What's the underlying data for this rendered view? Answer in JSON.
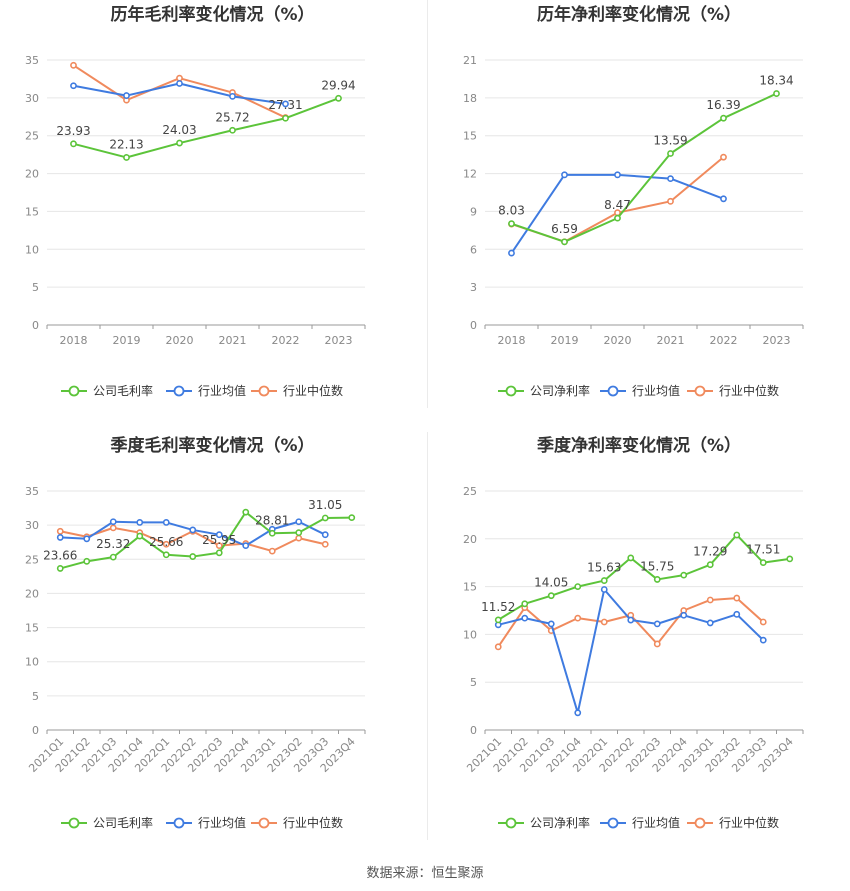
{
  "colors": {
    "company": "#5cc43a",
    "industry_avg": "#3f7be0",
    "industry_median": "#f08a5d"
  },
  "source": "数据来源：恒生聚源",
  "chart_data": [
    {
      "type": "line",
      "title": "历年毛利率变化情况（%）",
      "categories": [
        "2018",
        "2019",
        "2020",
        "2021",
        "2022",
        "2023"
      ],
      "ylim": [
        0,
        35
      ],
      "yticks": [
        0,
        5,
        10,
        15,
        20,
        25,
        30,
        35
      ],
      "legend": [
        "公司毛利率",
        "行业均值",
        "行业中位数"
      ],
      "series": [
        {
          "name": "公司毛利率",
          "values": [
            23.93,
            22.13,
            24.03,
            25.72,
            27.31,
            29.94
          ],
          "labels": [
            "23.93",
            "22.13",
            "24.03",
            "25.72",
            "27.31",
            "29.94"
          ]
        },
        {
          "name": "行业均值",
          "values": [
            31.6,
            30.3,
            31.9,
            30.2,
            29.2,
            null
          ]
        },
        {
          "name": "行业中位数",
          "values": [
            34.3,
            29.7,
            32.6,
            30.7,
            27.4,
            null
          ]
        }
      ]
    },
    {
      "type": "line",
      "title": "历年净利率变化情况（%）",
      "categories": [
        "2018",
        "2019",
        "2020",
        "2021",
        "2022",
        "2023"
      ],
      "ylim": [
        0,
        21
      ],
      "yticks": [
        0,
        3,
        6,
        9,
        12,
        15,
        18,
        21
      ],
      "legend": [
        "公司净利率",
        "行业均值",
        "行业中位数"
      ],
      "series": [
        {
          "name": "公司净利率",
          "values": [
            8.03,
            6.59,
            8.47,
            13.59,
            16.39,
            18.34
          ],
          "labels": [
            "8.03",
            "6.59",
            "8.47",
            "13.59",
            "16.39",
            "18.34"
          ]
        },
        {
          "name": "行业均值",
          "values": [
            5.7,
            11.9,
            11.9,
            11.6,
            10.0,
            null
          ]
        },
        {
          "name": "行业中位数",
          "values": [
            8.0,
            6.6,
            8.9,
            9.8,
            13.3,
            null
          ]
        }
      ]
    },
    {
      "type": "line",
      "title": "季度毛利率变化情况（%）",
      "categories": [
        "2021Q1",
        "2021Q2",
        "2021Q3",
        "2021Q4",
        "2022Q1",
        "2022Q2",
        "2022Q3",
        "2022Q4",
        "2023Q1",
        "2023Q2",
        "2023Q3",
        "2023Q4"
      ],
      "ylim": [
        0,
        35
      ],
      "yticks": [
        0,
        5,
        10,
        15,
        20,
        25,
        30,
        35
      ],
      "legend": [
        "公司毛利率",
        "行业均值",
        "行业中位数"
      ],
      "series": [
        {
          "name": "公司毛利率",
          "values": [
            23.66,
            24.7,
            25.32,
            28.4,
            25.66,
            25.4,
            25.95,
            31.9,
            28.81,
            28.9,
            31.05,
            31.1
          ],
          "labels": [
            "23.66",
            "",
            "25.32",
            "",
            "25.66",
            "",
            "25.95",
            "",
            "28.81",
            "",
            "31.05",
            ""
          ]
        },
        {
          "name": "行业均值",
          "values": [
            28.2,
            28.0,
            30.5,
            30.4,
            30.4,
            29.3,
            28.6,
            27.0,
            29.4,
            30.5,
            28.6,
            null
          ]
        },
        {
          "name": "行业中位数",
          "values": [
            29.1,
            28.3,
            29.6,
            28.9,
            27.2,
            29.1,
            27.0,
            27.3,
            26.2,
            28.1,
            27.2,
            null
          ]
        }
      ]
    },
    {
      "type": "line",
      "title": "季度净利率变化情况（%）",
      "categories": [
        "2021Q1",
        "2021Q2",
        "2021Q3",
        "2021Q4",
        "2022Q1",
        "2022Q2",
        "2022Q3",
        "2022Q4",
        "2023Q1",
        "2023Q2",
        "2023Q3",
        "2023Q4"
      ],
      "ylim": [
        0,
        25
      ],
      "yticks": [
        0,
        5,
        10,
        15,
        20,
        25
      ],
      "legend": [
        "公司净利率",
        "行业均值",
        "行业中位数"
      ],
      "series": [
        {
          "name": "公司净利率",
          "values": [
            11.52,
            13.2,
            14.05,
            15.0,
            15.63,
            18.0,
            15.75,
            16.2,
            17.29,
            20.4,
            17.51,
            17.9
          ],
          "labels": [
            "11.52",
            "",
            "14.05",
            "",
            "15.63",
            "",
            "15.75",
            "",
            "17.29",
            "",
            "17.51",
            ""
          ]
        },
        {
          "name": "行业均值",
          "values": [
            11.0,
            11.7,
            11.1,
            1.8,
            14.7,
            11.5,
            11.1,
            12.0,
            11.2,
            12.1,
            9.4,
            null
          ]
        },
        {
          "name": "行业中位数",
          "values": [
            8.7,
            12.8,
            10.4,
            11.7,
            11.3,
            12.0,
            9.0,
            12.5,
            13.6,
            13.8,
            11.3,
            null
          ]
        }
      ]
    }
  ]
}
